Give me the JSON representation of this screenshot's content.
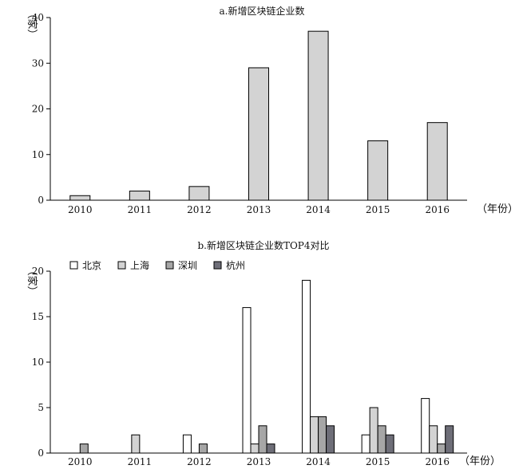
{
  "chart_data": [
    {
      "type": "bar",
      "title": "a.新增区块链企业数",
      "ylabel": "（家）",
      "xunit": "（年份）",
      "ylim": [
        0,
        40
      ],
      "yticks": [
        0,
        10,
        20,
        30,
        40
      ],
      "categories": [
        "2010",
        "2011",
        "2012",
        "2013",
        "2014",
        "2015",
        "2016"
      ],
      "values": [
        1,
        2,
        3,
        29,
        37,
        13,
        17
      ],
      "bar_color": "#d3d3d3",
      "legend": "none"
    },
    {
      "type": "bar",
      "title": "b.新增区块链企业数TOP4对比",
      "ylabel": "（家）",
      "xunit": "（年份）",
      "ylim": [
        0,
        20
      ],
      "yticks": [
        0,
        5,
        10,
        15,
        20
      ],
      "categories": [
        "2010",
        "2011",
        "2012",
        "2013",
        "2014",
        "2015",
        "2016"
      ],
      "legend": "top-left",
      "series": [
        {
          "name": "北京",
          "color": "#ffffff",
          "values": [
            0,
            0,
            2,
            16,
            19,
            2,
            6
          ]
        },
        {
          "name": "上海",
          "color": "#d3d3d3",
          "values": [
            0,
            2,
            0,
            1,
            4,
            5,
            3
          ]
        },
        {
          "name": "深圳",
          "color": "#a6a6a6",
          "values": [
            1,
            0,
            1,
            3,
            4,
            3,
            1
          ]
        },
        {
          "name": "杭州",
          "color": "#6e6e78",
          "values": [
            0,
            0,
            0,
            1,
            3,
            2,
            3
          ]
        }
      ]
    }
  ]
}
